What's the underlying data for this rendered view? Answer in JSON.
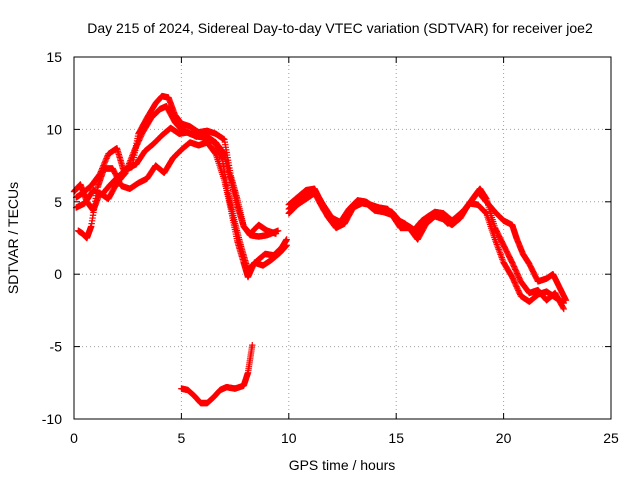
{
  "chart_data": {
    "type": "scatter",
    "title": "Day 215 of 2024, Sidereal Day-to-day VTEC variation (SDTVAR) for receiver joe2",
    "xlabel": "GPS time / hours",
    "ylabel": "SDTVAR / TECUs",
    "xlim": [
      0,
      25
    ],
    "ylim": [
      -10,
      15
    ],
    "xticks": [
      0,
      5,
      10,
      15,
      20,
      25
    ],
    "yticks": [
      -10,
      -5,
      0,
      5,
      10,
      15
    ],
    "grid": true,
    "marker": "plus",
    "color": "#ff0000",
    "series": [
      {
        "name": "track-a",
        "points": [
          [
            0,
            5.7
          ],
          [
            0.3,
            6.2
          ],
          [
            0.6,
            5.0
          ],
          [
            0.9,
            4.4
          ],
          [
            1.2,
            5.6
          ],
          [
            1.6,
            5.2
          ],
          [
            2.0,
            6.3
          ],
          [
            2.4,
            7.0
          ],
          [
            2.8,
            8.5
          ],
          [
            3.2,
            9.8
          ],
          [
            3.6,
            10.8
          ],
          [
            4.0,
            11.4
          ],
          [
            4.3,
            11.6
          ],
          [
            4.7,
            10.5
          ],
          [
            5.0,
            10.0
          ],
          [
            5.4,
            9.7
          ],
          [
            5.8,
            9.5
          ],
          [
            6.2,
            9.4
          ],
          [
            6.6,
            9.1
          ],
          [
            7.0,
            8.3
          ],
          [
            7.3,
            6.5
          ],
          [
            7.6,
            4.7
          ],
          [
            7.9,
            3.3
          ],
          [
            8.2,
            2.8
          ],
          [
            8.6,
            3.4
          ],
          [
            9.0,
            3.0
          ],
          [
            9.4,
            2.8
          ]
        ]
      },
      {
        "name": "track-b",
        "points": [
          [
            0.1,
            5.3
          ],
          [
            0.4,
            5.6
          ],
          [
            0.8,
            6.1
          ],
          [
            1.2,
            6.9
          ],
          [
            1.6,
            8.3
          ],
          [
            2.0,
            8.7
          ],
          [
            2.3,
            7.2
          ],
          [
            2.7,
            7.4
          ],
          [
            3.0,
            9.7
          ],
          [
            3.4,
            10.8
          ],
          [
            3.8,
            11.8
          ],
          [
            4.1,
            12.3
          ],
          [
            4.4,
            12.2
          ],
          [
            4.7,
            11.0
          ],
          [
            5.0,
            10.4
          ],
          [
            5.4,
            10.2
          ],
          [
            5.8,
            9.8
          ],
          [
            6.2,
            9.9
          ],
          [
            6.6,
            9.7
          ],
          [
            7.0,
            9.3
          ],
          [
            7.3,
            6.8
          ],
          [
            7.6,
            5.2
          ],
          [
            7.9,
            3.3
          ],
          [
            8.2,
            2.7
          ],
          [
            8.6,
            2.6
          ],
          [
            9.0,
            2.7
          ],
          [
            9.5,
            3.0
          ]
        ]
      },
      {
        "name": "track-c",
        "points": [
          [
            0.2,
            3.0
          ],
          [
            0.4,
            2.8
          ],
          [
            0.6,
            2.5
          ],
          [
            0.8,
            3.3
          ],
          [
            1.1,
            6.0
          ],
          [
            1.4,
            7.3
          ],
          [
            1.8,
            7.3
          ],
          [
            2.2,
            6.1
          ],
          [
            2.6,
            5.9
          ],
          [
            3.0,
            6.3
          ],
          [
            3.4,
            6.6
          ],
          [
            3.8,
            7.5
          ],
          [
            4.2,
            7.0
          ],
          [
            4.6,
            8.0
          ],
          [
            5.0,
            8.6
          ],
          [
            5.4,
            9.1
          ],
          [
            5.8,
            8.9
          ],
          [
            6.2,
            9.1
          ],
          [
            6.6,
            8.3
          ],
          [
            7.0,
            6.5
          ],
          [
            7.3,
            4.5
          ],
          [
            7.6,
            2.3
          ],
          [
            7.9,
            0.8
          ],
          [
            8.1,
            -0.2
          ],
          [
            8.4,
            0.8
          ],
          [
            8.8,
            0.6
          ],
          [
            9.2,
            1.0
          ],
          [
            9.6,
            1.5
          ],
          [
            9.9,
            2.0
          ]
        ]
      },
      {
        "name": "track-d",
        "points": [
          [
            0.1,
            4.6
          ],
          [
            0.5,
            4.9
          ],
          [
            0.9,
            5.8
          ],
          [
            1.3,
            5.5
          ],
          [
            1.7,
            6.2
          ],
          [
            2.1,
            6.8
          ],
          [
            2.5,
            7.3
          ],
          [
            2.9,
            7.6
          ],
          [
            3.3,
            8.5
          ],
          [
            3.7,
            9.0
          ],
          [
            4.1,
            9.6
          ],
          [
            4.5,
            10.1
          ],
          [
            4.9,
            9.7
          ],
          [
            5.3,
            9.8
          ],
          [
            5.7,
            9.5
          ],
          [
            6.1,
            9.6
          ],
          [
            6.5,
            9.2
          ],
          [
            6.9,
            8.0
          ],
          [
            7.2,
            5.4
          ],
          [
            7.5,
            3.5
          ],
          [
            7.8,
            1.8
          ],
          [
            8.1,
            0.3
          ],
          [
            8.5,
            0.9
          ],
          [
            8.9,
            1.4
          ],
          [
            9.3,
            1.3
          ],
          [
            9.7,
            1.9
          ],
          [
            9.9,
            2.4
          ]
        ]
      },
      {
        "name": "track-e",
        "points": [
          [
            10.0,
            4.8
          ],
          [
            10.4,
            5.3
          ],
          [
            10.8,
            5.8
          ],
          [
            11.2,
            5.9
          ],
          [
            11.5,
            5.0
          ],
          [
            11.8,
            4.0
          ],
          [
            12.2,
            3.2
          ],
          [
            12.6,
            3.5
          ],
          [
            13.0,
            4.6
          ],
          [
            13.4,
            4.9
          ],
          [
            13.8,
            4.8
          ],
          [
            14.2,
            4.6
          ],
          [
            14.6,
            4.5
          ],
          [
            15.0,
            3.8
          ],
          [
            15.4,
            3.5
          ],
          [
            15.8,
            3.0
          ],
          [
            16.2,
            3.7
          ],
          [
            16.6,
            4.1
          ],
          [
            17.0,
            4.1
          ],
          [
            17.4,
            3.5
          ],
          [
            17.8,
            3.8
          ],
          [
            18.2,
            4.5
          ],
          [
            18.6,
            5.3
          ],
          [
            18.9,
            5.9
          ],
          [
            19.2,
            5.2
          ],
          [
            19.6,
            3.2
          ],
          [
            20.0,
            2.0
          ],
          [
            20.4,
            0.8
          ],
          [
            20.8,
            -0.5
          ],
          [
            21.2,
            -1.3
          ],
          [
            21.6,
            -1.1
          ],
          [
            22.0,
            -1.8
          ],
          [
            22.4,
            -1.3
          ],
          [
            22.8,
            -2.4
          ]
        ]
      },
      {
        "name": "track-f",
        "points": [
          [
            10.0,
            4.2
          ],
          [
            10.4,
            4.8
          ],
          [
            10.8,
            5.2
          ],
          [
            11.2,
            5.6
          ],
          [
            11.6,
            4.5
          ],
          [
            12.0,
            3.6
          ],
          [
            12.4,
            3.4
          ],
          [
            12.8,
            4.2
          ],
          [
            13.2,
            5.0
          ],
          [
            13.6,
            4.9
          ],
          [
            14.0,
            4.4
          ],
          [
            14.4,
            4.3
          ],
          [
            14.8,
            4.1
          ],
          [
            15.2,
            3.2
          ],
          [
            15.6,
            3.2
          ],
          [
            16.0,
            2.4
          ],
          [
            16.4,
            3.5
          ],
          [
            16.8,
            4.0
          ],
          [
            17.2,
            3.8
          ],
          [
            17.6,
            3.4
          ],
          [
            18.0,
            3.9
          ],
          [
            18.4,
            4.9
          ],
          [
            18.8,
            4.8
          ],
          [
            19.2,
            4.2
          ],
          [
            19.6,
            2.4
          ],
          [
            20.0,
            0.8
          ],
          [
            20.4,
            -0.2
          ],
          [
            20.8,
            -1.5
          ],
          [
            21.2,
            -1.9
          ],
          [
            21.6,
            -1.4
          ],
          [
            22.0,
            -1.2
          ],
          [
            22.4,
            -1.6
          ],
          [
            22.8,
            -2.0
          ]
        ]
      },
      {
        "name": "track-g",
        "points": [
          [
            10.0,
            4.5
          ],
          [
            10.4,
            5.0
          ],
          [
            10.8,
            5.5
          ],
          [
            11.2,
            5.8
          ],
          [
            11.6,
            4.8
          ],
          [
            12.0,
            3.9
          ],
          [
            12.4,
            3.6
          ],
          [
            12.8,
            4.5
          ],
          [
            13.2,
            5.1
          ],
          [
            13.6,
            5.0
          ],
          [
            14.0,
            4.6
          ],
          [
            14.4,
            4.5
          ],
          [
            14.8,
            4.3
          ],
          [
            15.2,
            3.6
          ],
          [
            15.6,
            3.3
          ],
          [
            16.0,
            2.9
          ],
          [
            16.4,
            3.9
          ],
          [
            16.8,
            4.3
          ],
          [
            17.2,
            4.2
          ],
          [
            17.6,
            3.7
          ],
          [
            18.0,
            4.2
          ],
          [
            18.4,
            4.8
          ],
          [
            18.8,
            5.7
          ],
          [
            19.2,
            5.0
          ],
          [
            19.6,
            4.3
          ],
          [
            20.0,
            3.7
          ],
          [
            20.4,
            3.4
          ],
          [
            20.6,
            2.5
          ],
          [
            20.9,
            1.4
          ],
          [
            21.2,
            0.7
          ],
          [
            21.6,
            -0.5
          ],
          [
            22.0,
            -0.3
          ],
          [
            22.3,
            0.0
          ],
          [
            22.6,
            -0.9
          ],
          [
            22.9,
            -1.8
          ]
        ]
      },
      {
        "name": "track-h",
        "points": [
          [
            5.0,
            -7.9
          ],
          [
            5.3,
            -8.0
          ],
          [
            5.6,
            -8.4
          ],
          [
            5.9,
            -8.9
          ],
          [
            6.2,
            -8.9
          ],
          [
            6.5,
            -8.5
          ],
          [
            6.8,
            -8.0
          ],
          [
            7.1,
            -7.8
          ],
          [
            7.5,
            -7.9
          ],
          [
            7.9,
            -7.7
          ],
          [
            8.1,
            -6.8
          ],
          [
            8.3,
            -4.9
          ]
        ]
      }
    ]
  }
}
